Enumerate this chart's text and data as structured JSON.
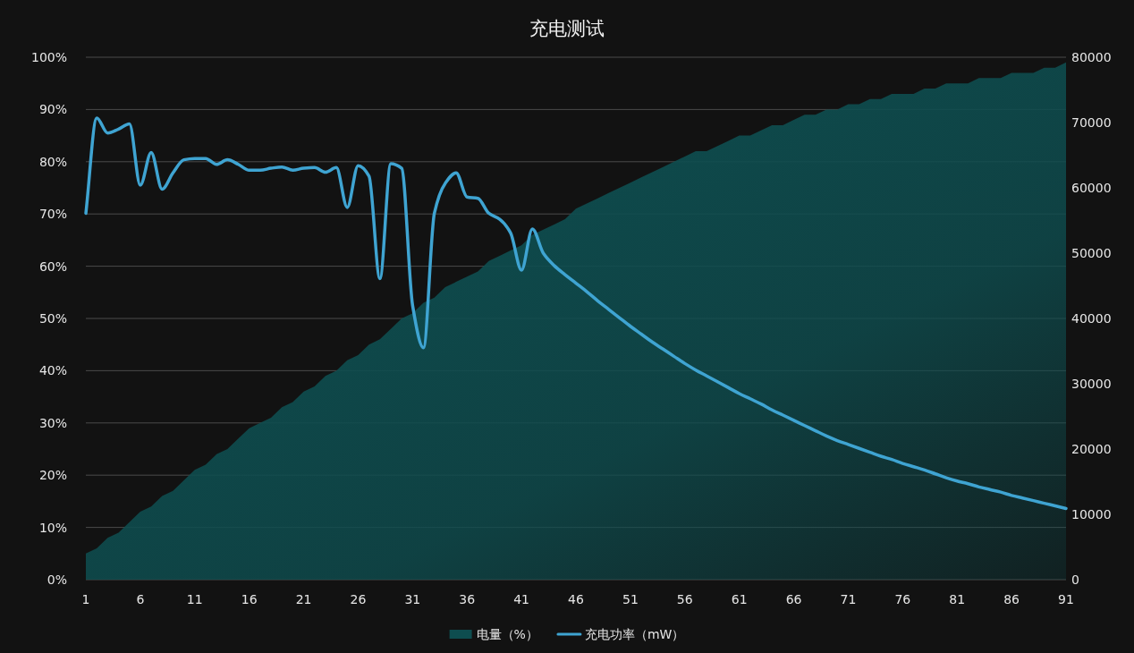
{
  "chart_data": {
    "type": "area",
    "title": "充电测试",
    "x": [
      1,
      2,
      3,
      4,
      5,
      6,
      7,
      8,
      9,
      10,
      11,
      12,
      13,
      14,
      15,
      16,
      17,
      18,
      19,
      20,
      21,
      22,
      23,
      24,
      25,
      26,
      27,
      28,
      29,
      30,
      31,
      32,
      33,
      34,
      35,
      36,
      37,
      38,
      39,
      40,
      41,
      42,
      43,
      44,
      45,
      46,
      47,
      48,
      49,
      50,
      51,
      52,
      53,
      54,
      55,
      56,
      57,
      58,
      59,
      60,
      61,
      62,
      63,
      64,
      65,
      66,
      67,
      68,
      69,
      70,
      71,
      72,
      73,
      74,
      75,
      76,
      77,
      78,
      79,
      80,
      81,
      82,
      83,
      84,
      85,
      86,
      87,
      88,
      89,
      90,
      91
    ],
    "series": [
      {
        "name": "电量（%）",
        "color": "#0e4d4f",
        "values": [
          5,
          6,
          8,
          9,
          11,
          13,
          14,
          16,
          17,
          19,
          21,
          22,
          24,
          25,
          27,
          29,
          30,
          31,
          33,
          34,
          36,
          37,
          39,
          40,
          42,
          43,
          45,
          46,
          48,
          50,
          51,
          53,
          54,
          56,
          57,
          58,
          59,
          61,
          62,
          63,
          64,
          66,
          67,
          68,
          69,
          71,
          72,
          73,
          74,
          75,
          76,
          77,
          78,
          79,
          80,
          81,
          82,
          82,
          83,
          84,
          85,
          85,
          86,
          87,
          87,
          88,
          89,
          89,
          90,
          90,
          91,
          91,
          92,
          92,
          93,
          93,
          93,
          94,
          94,
          95,
          95,
          95,
          96,
          96,
          96,
          97,
          97,
          97,
          98,
          98,
          99
        ]
      },
      {
        "name": "充电功率（mW）",
        "type": "line",
        "axis": "y2",
        "color": "#3fa4d2",
        "values": [
          56100,
          70700,
          68400,
          69000,
          69800,
          60400,
          65400,
          59800,
          62300,
          64300,
          64500,
          64500,
          63600,
          64300,
          63600,
          62700,
          62700,
          63000,
          63200,
          62700,
          63000,
          63100,
          62400,
          63100,
          57000,
          63400,
          61800,
          46100,
          63700,
          63000,
          42000,
          35500,
          56100,
          60700,
          62300,
          58600,
          58400,
          56100,
          55200,
          53100,
          47400,
          53700,
          50000,
          48100,
          46700,
          45400,
          44100,
          42700,
          41400,
          40100,
          38800,
          37600,
          36400,
          35300,
          34200,
          33100,
          32100,
          31200,
          30300,
          29400,
          28500,
          27700,
          26900,
          26000,
          25200,
          24400,
          23600,
          22800,
          22000,
          21300,
          20700,
          20100,
          19500,
          18900,
          18400,
          17800,
          17300,
          16800,
          16200,
          15600,
          15100,
          14700,
          14200,
          13800,
          13400,
          12900,
          12500,
          12100,
          11700,
          11300,
          10900
        ]
      }
    ],
    "xlim": [
      1,
      91
    ],
    "xticks": [
      1,
      6,
      11,
      16,
      21,
      26,
      31,
      36,
      41,
      46,
      51,
      56,
      61,
      66,
      71,
      76,
      81,
      86,
      91
    ],
    "ylim": [
      0,
      100
    ],
    "yticks": [
      {
        "value": 0,
        "label": "0%"
      },
      {
        "value": 10,
        "label": "10%"
      },
      {
        "value": 20,
        "label": "20%"
      },
      {
        "value": 30,
        "label": "30%"
      },
      {
        "value": 40,
        "label": "40%"
      },
      {
        "value": 50,
        "label": "50%"
      },
      {
        "value": 60,
        "label": "60%"
      },
      {
        "value": 70,
        "label": "70%"
      },
      {
        "value": 80,
        "label": "80%"
      },
      {
        "value": 90,
        "label": "90%"
      },
      {
        "value": 100,
        "label": "100%"
      }
    ],
    "y2lim": [
      0,
      80000
    ],
    "y2ticks": [
      0,
      10000,
      20000,
      30000,
      40000,
      50000,
      60000,
      70000,
      80000
    ],
    "grid": "y",
    "legend": "bottom"
  }
}
